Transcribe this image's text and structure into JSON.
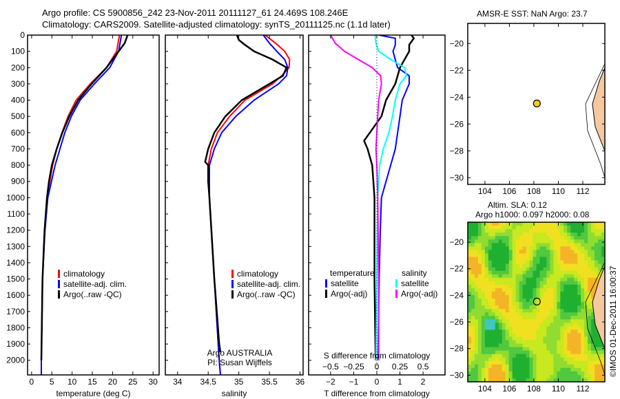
{
  "title_line1": "Argo profile: CS 5900856_242 23-Nov-2011 20111127_61 24.469S 108.246E",
  "title_line2": "Climatology: CARS2009. Satellite-adjusted climatology: synTS_20111125.nc (1.1d later)",
  "colors": {
    "climatology": "#ff0000",
    "satellite": "#0000ff",
    "argo": "#000000",
    "sal_satellite": "#00ffff",
    "sal_argo": "#ff00ff",
    "land": "#f5c8a0",
    "float_marker": "#f0d020"
  },
  "chart_data": [
    {
      "type": "line",
      "id": "temperature",
      "xlabel": "temperature (deg C)",
      "ylabel": "",
      "xlim": [
        -1,
        31.5
      ],
      "ylim": [
        2090,
        0
      ],
      "xticks": [
        0,
        5,
        10,
        15,
        20,
        25,
        30
      ],
      "yticks": [
        0,
        100,
        200,
        300,
        400,
        500,
        600,
        700,
        800,
        900,
        1000,
        1100,
        1200,
        1300,
        1400,
        1500,
        1600,
        1700,
        1800,
        1900,
        2000
      ],
      "legend": [
        "climatology",
        "satellite-adj. clim.",
        "Argo(..raw -QC)"
      ],
      "series": [
        {
          "name": "climatology",
          "color": "#ff0000",
          "depth": [
            0,
            100,
            200,
            300,
            400,
            500,
            600,
            700,
            800,
            1000,
            1200,
            1500,
            2000,
            2090
          ],
          "values": [
            21.7,
            21,
            18.5,
            14.5,
            11,
            9,
            7.5,
            6.2,
            5.2,
            3.8,
            3.2,
            2.7,
            2.4,
            2.4
          ]
        },
        {
          "name": "satellite-adj. clim.",
          "color": "#0000ff",
          "depth": [
            0,
            100,
            200,
            300,
            400,
            500,
            600,
            700,
            800,
            1000,
            1200,
            1500,
            2000,
            2090
          ],
          "values": [
            22.2,
            21.5,
            19.3,
            15.5,
            12,
            9.8,
            8.2,
            7,
            5.8,
            4,
            3.3,
            2.7,
            2.4,
            2.4
          ]
        },
        {
          "name": "Argo(..raw -QC)",
          "color": "#000000",
          "depth": [
            0,
            50,
            100,
            200,
            300,
            400,
            500,
            600,
            700,
            800,
            900,
            1000,
            1200,
            1500,
            2000
          ],
          "values": [
            23.7,
            23,
            21.5,
            18.5,
            14.8,
            11.5,
            9.3,
            7.6,
            6.2,
            5,
            4.3,
            3.8,
            3.2,
            2.7,
            2.4
          ]
        }
      ]
    },
    {
      "type": "line",
      "id": "salinity",
      "xlabel": "salinity",
      "xlim": [
        33.8,
        36.05
      ],
      "ylim": [
        2090,
        0
      ],
      "xticks": [
        34,
        34.5,
        35,
        35.5,
        36
      ],
      "legend": [
        "climatology",
        "satellite-adj. clim.",
        "Argo(..raw -QC)"
      ],
      "annotation": [
        "Argo AUSTRALIA",
        "PI: Susan Wijffels"
      ],
      "series": [
        {
          "name": "climatology",
          "color": "#ff0000",
          "depth": [
            0,
            50,
            100,
            150,
            200,
            250,
            300,
            400,
            500,
            600,
            700,
            800,
            1000,
            1500,
            2000,
            2090
          ],
          "values": [
            35.43,
            35.6,
            35.75,
            35.83,
            35.82,
            35.7,
            35.55,
            35.1,
            34.85,
            34.65,
            34.55,
            34.5,
            34.52,
            34.6,
            34.68,
            34.7
          ]
        },
        {
          "name": "satellite-adj. clim.",
          "color": "#0000ff",
          "depth": [
            0,
            50,
            100,
            150,
            200,
            250,
            300,
            400,
            500,
            600,
            700,
            800,
            1000,
            1500,
            2000,
            2090
          ],
          "values": [
            35.4,
            35.5,
            35.62,
            35.75,
            35.8,
            35.78,
            35.65,
            35.25,
            34.95,
            34.72,
            34.6,
            34.52,
            34.52,
            34.6,
            34.68,
            34.7
          ]
        },
        {
          "name": "Argo(..raw -QC)",
          "color": "#000000",
          "depth": [
            0,
            30,
            60,
            100,
            150,
            200,
            250,
            300,
            400,
            500,
            600,
            700,
            780,
            800,
            900,
            1000,
            1500,
            1900,
            1950
          ],
          "values": [
            34.97,
            35.0,
            35.1,
            35.25,
            35.55,
            35.78,
            35.72,
            35.5,
            35.05,
            34.78,
            34.6,
            34.5,
            34.45,
            34.5,
            34.5,
            34.52,
            34.6,
            34.68,
            34.7
          ]
        }
      ]
    },
    {
      "type": "line",
      "id": "differences",
      "xlabel": "T difference from climatology",
      "xlabel_top": "S difference from climatology",
      "xlim": [
        -2.95,
        2.95
      ],
      "ylim": [
        2090,
        0
      ],
      "xticks": [
        -2,
        -1,
        0,
        1,
        2
      ],
      "xticks_top": [
        -0.5,
        -0.25,
        0,
        0.25,
        0.5
      ],
      "legend_temperature_title": "temperature",
      "legend_salinity_title": "salinity",
      "legend": [
        "satellite",
        "Argo(-adj)",
        "satellite",
        "Argo(-adj)"
      ],
      "series": [
        {
          "name": "temperature satellite",
          "color": "#0000ff",
          "axis": "T",
          "depth": [
            0,
            20,
            60,
            100,
            150,
            200,
            250,
            300,
            400,
            500,
            600,
            700,
            800,
            900,
            1000,
            1200,
            1500,
            2000
          ],
          "values": [
            0.1,
            0.8,
            0.8,
            0.7,
            0.8,
            0.9,
            1.4,
            1.4,
            1.1,
            1.0,
            0.9,
            0.8,
            0.6,
            0.4,
            0.2,
            0.15,
            0.1,
            0.05
          ]
        },
        {
          "name": "temperature Argo(-adj)",
          "color": "#000000",
          "axis": "T",
          "depth": [
            0,
            20,
            60,
            100,
            200,
            300,
            400,
            500,
            600,
            650,
            700,
            800,
            900,
            1000,
            1500,
            2000
          ],
          "values": [
            1.5,
            1.6,
            1.4,
            1.4,
            1.0,
            0.8,
            0.4,
            0.2,
            -0.3,
            -0.55,
            -0.4,
            -0.2,
            -0.15,
            -0.1,
            -0.1,
            -0.05
          ]
        },
        {
          "name": "salinity satellite",
          "color": "#00ffff",
          "axis": "S",
          "depth": [
            0,
            50,
            100,
            150,
            200,
            250,
            300,
            400,
            500,
            600,
            700,
            800,
            1000,
            1500,
            2000
          ],
          "values": [
            -0.02,
            -0.01,
            0.02,
            0.15,
            0.3,
            0.32,
            0.25,
            0.2,
            0.17,
            0.13,
            0.07,
            0.03,
            0.01,
            0,
            -0.01
          ]
        },
        {
          "name": "salinity Argo(-adj)",
          "color": "#ff00ff",
          "axis": "S",
          "depth": [
            0,
            50,
            100,
            150,
            200,
            250,
            300,
            400,
            500,
            600,
            700,
            800,
            1000,
            1500,
            2000
          ],
          "values": [
            -0.5,
            -0.45,
            -0.35,
            -0.2,
            -0.05,
            0.04,
            0.05,
            0.02,
            0.01,
            0,
            -0.01,
            0,
            0.01,
            0.02,
            0.02
          ]
        }
      ]
    },
    {
      "type": "scatter",
      "id": "sst_map",
      "title": "AMSR-E SST: NaN Argo: 23.7",
      "xlim": [
        102.6,
        113.8
      ],
      "ylim": [
        -30.5,
        -18.5
      ],
      "xticks": [
        104,
        106,
        108,
        110,
        112
      ],
      "yticks": [
        -20,
        -22,
        -24,
        -26,
        -28,
        -30
      ],
      "points": [
        {
          "lon": 108.246,
          "lat": -24.469
        }
      ]
    },
    {
      "type": "heatmap",
      "id": "sla_map",
      "title_line1": "Altim. SLA: 0.12",
      "title_line2": "Argo h1000: 0.097 h2000: 0.08",
      "xlim": [
        102.6,
        113.8
      ],
      "ylim": [
        -30.5,
        -18.5
      ],
      "xticks": [
        104,
        106,
        108,
        110,
        112
      ],
      "yticks": [
        -20,
        -22,
        -24,
        -26,
        -28,
        -30
      ],
      "points": [
        {
          "lon": 108.246,
          "lat": -24.469
        }
      ]
    }
  ],
  "credit": "©IMOS 01-Dec-2011 16:00:37"
}
